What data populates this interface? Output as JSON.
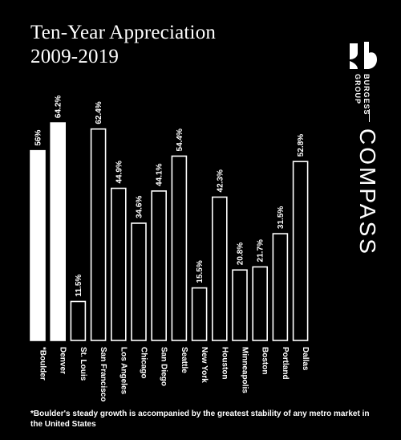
{
  "header": {
    "title": "Ten-Year Appreciation",
    "subtitle": "2009-2019"
  },
  "brand": {
    "burgess_name": "BURGESS",
    "burgess_group": "GROUP",
    "compass_logo": "COMPASS"
  },
  "footnote": "*Boulder's steady growth is accompanied by the greatest stability of any metro market in the United States",
  "chart_data": {
    "type": "bar",
    "categories": [
      "*Boulder",
      "Denver",
      "St. Louis",
      "San Francisco",
      "Los Angeles",
      "Chicago",
      "San Diego",
      "Seattle",
      "New York",
      "Houston",
      "Minneapolis",
      "Boston",
      "Portland",
      "Dallas"
    ],
    "values": [
      56,
      64.2,
      11.5,
      62.4,
      44.9,
      34.6,
      44.1,
      54.4,
      15.5,
      42.3,
      20.8,
      21.7,
      31.5,
      52.8
    ],
    "value_labels": [
      "56%",
      "64.2%",
      "11.5%",
      "62.4%",
      "44.9%",
      "34.6%",
      "44.1%",
      "54.4%",
      "15.5%",
      "42.3%",
      "20.8%",
      "21.7%",
      "31.5%",
      "52.8%"
    ],
    "highlighted": [
      "*Boulder",
      "Denver"
    ],
    "grid": false,
    "legend": "none",
    "colors": {
      "highlight": "#ffffff",
      "outline": "#ffffff",
      "background": "#000000"
    }
  }
}
